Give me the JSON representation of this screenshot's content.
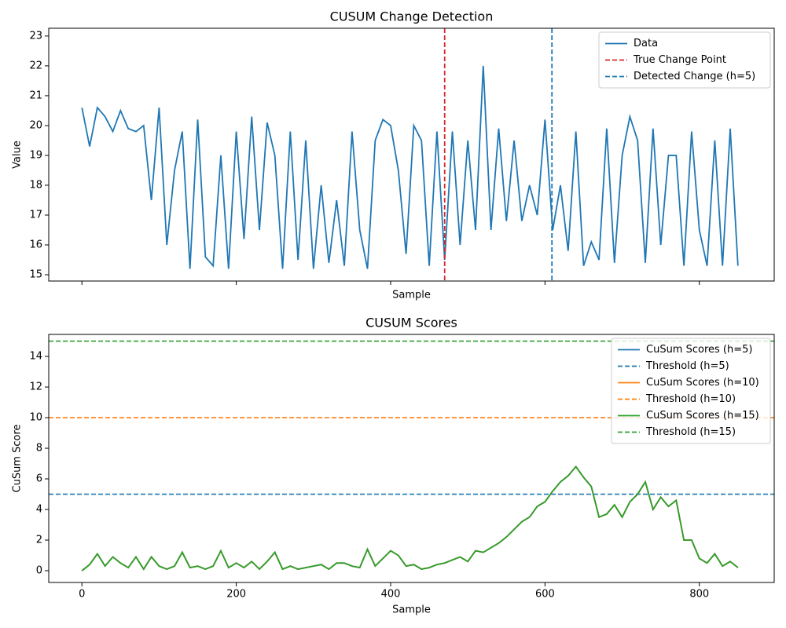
{
  "chart_data": [
    {
      "type": "line",
      "title": "CUSUM Change Detection",
      "xlabel": "Sample",
      "ylabel": "Value",
      "xlim": [
        -43,
        897
      ],
      "ylim": [
        14.79,
        23.26
      ],
      "xticks": [
        0,
        200,
        400,
        600,
        800
      ],
      "xtick_labels": false,
      "yticks": [
        15,
        16,
        17,
        18,
        19,
        20,
        21,
        22,
        23
      ],
      "legend": "upper right",
      "x": [
        0,
        10,
        20,
        30,
        40,
        50,
        60,
        70,
        80,
        90,
        100,
        110,
        120,
        130,
        140,
        150,
        160,
        170,
        180,
        190,
        200,
        210,
        220,
        230,
        240,
        250,
        260,
        270,
        280,
        290,
        300,
        310,
        320,
        330,
        340,
        350,
        360,
        370,
        380,
        390,
        400,
        410,
        420,
        430,
        440,
        450,
        460,
        470,
        480,
        490,
        500,
        510,
        520,
        530,
        540,
        550,
        560,
        570,
        580,
        590,
        600,
        610,
        620,
        630,
        640,
        650,
        660,
        670,
        680,
        690,
        700,
        710,
        720,
        730,
        740,
        750,
        760,
        770,
        780,
        790,
        800,
        810,
        820,
        830,
        840,
        850
      ],
      "series": [
        {
          "name": "Data",
          "color": "#1f77b4",
          "values": [
            20.6,
            19.3,
            20.6,
            20.3,
            19.8,
            20.5,
            19.9,
            19.8,
            20.0,
            17.5,
            20.6,
            16.0,
            18.5,
            19.8,
            15.2,
            20.2,
            15.6,
            15.3,
            19.0,
            15.2,
            19.8,
            16.2,
            20.3,
            16.5,
            20.1,
            19.0,
            15.2,
            19.8,
            15.5,
            19.5,
            15.2,
            18.0,
            15.4,
            17.5,
            15.3,
            19.8,
            16.5,
            15.2,
            19.5,
            20.2,
            20.0,
            18.5,
            15.7,
            20.0,
            19.5,
            15.3,
            19.8,
            15.5,
            19.8,
            16.0,
            19.5,
            16.5,
            22.0,
            16.5,
            19.9,
            16.8,
            19.5,
            16.8,
            18.0,
            17.0,
            20.2,
            16.5,
            18.0,
            15.8,
            19.8,
            15.3,
            16.1,
            15.5,
            19.9,
            15.4,
            19.0,
            20.3,
            19.5,
            15.4,
            19.9,
            16.0,
            19.0,
            19.0,
            15.3,
            19.8,
            16.5,
            15.3,
            19.5,
            15.3,
            19.9,
            15.3
          ]
        },
        {
          "name": "True Change Point",
          "color": "#d62728",
          "dash": true,
          "vline": 470
        },
        {
          "name": "Detected Change (h=5)",
          "color": "#1f77b4",
          "dash": true,
          "vline": 609
        }
      ]
    },
    {
      "type": "line",
      "title": "CUSUM Scores",
      "xlabel": "Sample",
      "ylabel": "CuSum Score",
      "xlim": [
        -43,
        897
      ],
      "ylim": [
        -0.77,
        15.44
      ],
      "xticks": [
        0,
        200,
        400,
        600,
        800
      ],
      "xtick_labels": true,
      "yticks": [
        0,
        2,
        4,
        6,
        8,
        10,
        12,
        14
      ],
      "legend": "upper right",
      "x": [
        0,
        10,
        20,
        30,
        40,
        50,
        60,
        70,
        80,
        90,
        100,
        110,
        120,
        130,
        140,
        150,
        160,
        170,
        180,
        190,
        200,
        210,
        220,
        230,
        240,
        250,
        260,
        270,
        280,
        290,
        300,
        310,
        320,
        330,
        340,
        350,
        360,
        370,
        380,
        390,
        400,
        410,
        420,
        430,
        440,
        450,
        460,
        470,
        480,
        490,
        500,
        510,
        520,
        530,
        540,
        550,
        560,
        570,
        580,
        590,
        600,
        610,
        620,
        630,
        640,
        650,
        660,
        670,
        680,
        690,
        700,
        710,
        720,
        730,
        740,
        750,
        760,
        770,
        780,
        790,
        800,
        810,
        820,
        830,
        840,
        850
      ],
      "series": [
        {
          "name": "CuSum Scores (h=5)",
          "color": "#1f77b4",
          "values": [
            0,
            0.4,
            1.1,
            0.3,
            0.9,
            0.5,
            0.2,
            0.9,
            0.1,
            0.9,
            0.3,
            0.1,
            0.3,
            1.2,
            0.2,
            0.3,
            0.1,
            0.3,
            1.3,
            0.2,
            0.5,
            0.2,
            0.6,
            0.1,
            0.6,
            1.2,
            0.1,
            0.3,
            0.1,
            0.2,
            0.3,
            0.4,
            0.1,
            0.5,
            0.5,
            0.3,
            0.2,
            1.4,
            0.3,
            0.8,
            1.3,
            1.0,
            0.3,
            0.4,
            0.1,
            0.2,
            0.4,
            0.5,
            0.7,
            0.9,
            0.6,
            1.3,
            1.2,
            1.5,
            1.8,
            2.2,
            2.7,
            3.2,
            3.5,
            4.2,
            4.5,
            5.2,
            5.8,
            6.2,
            6.8,
            6.1,
            5.5,
            3.5,
            3.7,
            4.3,
            3.5,
            4.5,
            5.0,
            5.8,
            4.0,
            4.8,
            4.2,
            4.6,
            2.0,
            2.0,
            0.8,
            0.5,
            1.1,
            0.3,
            0.6,
            0.2
          ]
        },
        {
          "name": "Threshold (h=5)",
          "color": "#1f77b4",
          "dash": true,
          "hline": 5
        },
        {
          "name": "CuSum Scores (h=10)",
          "color": "#ff7f0e",
          "values": [
            0,
            0.4,
            1.1,
            0.3,
            0.9,
            0.5,
            0.2,
            0.9,
            0.1,
            0.9,
            0.3,
            0.1,
            0.3,
            1.2,
            0.2,
            0.3,
            0.1,
            0.3,
            1.3,
            0.2,
            0.5,
            0.2,
            0.6,
            0.1,
            0.6,
            1.2,
            0.1,
            0.3,
            0.1,
            0.2,
            0.3,
            0.4,
            0.1,
            0.5,
            0.5,
            0.3,
            0.2,
            1.4,
            0.3,
            0.8,
            1.3,
            1.0,
            0.3,
            0.4,
            0.1,
            0.2,
            0.4,
            0.5,
            0.7,
            0.9,
            0.6,
            1.3,
            1.2,
            1.5,
            1.8,
            2.2,
            2.7,
            3.2,
            3.5,
            4.2,
            4.5,
            5.2,
            5.8,
            6.2,
            6.8,
            6.1,
            5.5,
            3.5,
            3.7,
            4.3,
            3.5,
            4.5,
            5.0,
            5.8,
            4.0,
            4.8,
            4.2,
            4.6,
            2.0,
            2.0,
            0.8,
            0.5,
            1.1,
            0.3,
            0.6,
            0.2
          ]
        },
        {
          "name": "Threshold (h=10)",
          "color": "#ff7f0e",
          "dash": true,
          "hline": 10
        },
        {
          "name": "CuSum Scores (h=15)",
          "color": "#2ca02c",
          "values": [
            0,
            0.4,
            1.1,
            0.3,
            0.9,
            0.5,
            0.2,
            0.9,
            0.1,
            0.9,
            0.3,
            0.1,
            0.3,
            1.2,
            0.2,
            0.3,
            0.1,
            0.3,
            1.3,
            0.2,
            0.5,
            0.2,
            0.6,
            0.1,
            0.6,
            1.2,
            0.1,
            0.3,
            0.1,
            0.2,
            0.3,
            0.4,
            0.1,
            0.5,
            0.5,
            0.3,
            0.2,
            1.4,
            0.3,
            0.8,
            1.3,
            1.0,
            0.3,
            0.4,
            0.1,
            0.2,
            0.4,
            0.5,
            0.7,
            0.9,
            0.6,
            1.3,
            1.2,
            1.5,
            1.8,
            2.2,
            2.7,
            3.2,
            3.5,
            4.2,
            4.5,
            5.2,
            5.8,
            6.2,
            6.8,
            6.1,
            5.5,
            3.5,
            3.7,
            4.3,
            3.5,
            4.5,
            5.0,
            5.8,
            4.0,
            4.8,
            4.2,
            4.6,
            2.0,
            2.0,
            0.8,
            0.5,
            1.1,
            0.3,
            0.6,
            0.2
          ]
        },
        {
          "name": "Threshold (h=15)",
          "color": "#2ca02c",
          "dash": true,
          "hline": 15
        }
      ]
    }
  ]
}
